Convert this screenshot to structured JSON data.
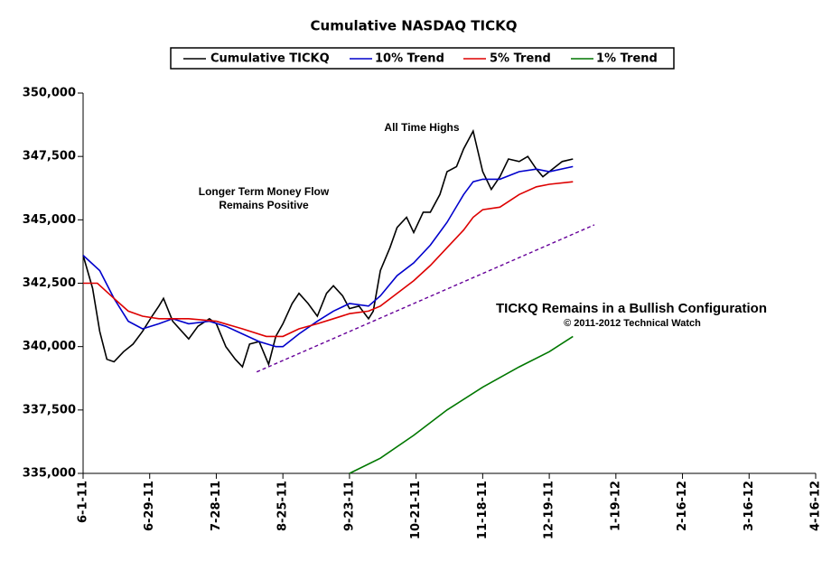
{
  "chart_data": {
    "type": "line",
    "title": "Cumulative NASDAQ TICKQ",
    "legend": "top",
    "xlim": [
      "6-1-11",
      "4-16-12"
    ],
    "xticks": [
      "6-1-11",
      "6-29-11",
      "7-28-11",
      "8-25-11",
      "9-23-11",
      "10-21-11",
      "11-18-11",
      "12-19-11",
      "1-19-12",
      "2-16-12",
      "3-16-12",
      "4-16-12"
    ],
    "ylim": [
      335000,
      350000
    ],
    "yticks": [
      {
        "value": 335000,
        "label": "335,000"
      },
      {
        "value": 337500,
        "label": "337,500"
      },
      {
        "value": 340000,
        "label": "340,000"
      },
      {
        "value": 342500,
        "label": "342,500"
      },
      {
        "value": 345000,
        "label": "345,000"
      },
      {
        "value": 347500,
        "label": "347,500"
      },
      {
        "value": 350000,
        "label": "350,000"
      }
    ],
    "series": [
      {
        "name": "Cumulative TICKQ",
        "color": "#000000",
        "x": [
          "6-1-11",
          "6-5-11",
          "6-8-11",
          "6-11-11",
          "6-14-11",
          "6-18-11",
          "6-22-11",
          "6-26-11",
          "6-30-11",
          "7-3-11",
          "7-5-11",
          "7-9-11",
          "7-13-11",
          "7-16-11",
          "7-20-11",
          "7-25-11",
          "7-28-11",
          "8-1-11",
          "8-5-11",
          "8-8-11",
          "8-11-11",
          "8-15-11",
          "8-19-11",
          "8-22-11",
          "8-25-11",
          "8-29-11",
          "9-1-11",
          "9-5-11",
          "9-9-11",
          "9-13-11",
          "9-16-11",
          "9-20-11",
          "9-23-11",
          "9-27-11",
          "10-1-11",
          "10-3-11",
          "10-6-11",
          "10-10-11",
          "10-13-11",
          "10-17-11",
          "10-20-11",
          "10-24-11",
          "10-27-11",
          "10-31-11",
          "11-3-11",
          "11-7-11",
          "11-10-11",
          "11-14-11",
          "11-18-11",
          "11-22-11",
          "11-26-11",
          "11-30-11",
          "12-5-11",
          "12-9-11",
          "12-13-11",
          "12-16-11",
          "12-19-11",
          "12-22-11",
          "12-25-11",
          "12-30-11"
        ],
        "values": [
          343600,
          342300,
          340600,
          339500,
          339400,
          339800,
          340100,
          340600,
          341200,
          341600,
          341900,
          341000,
          340600,
          340300,
          340800,
          341100,
          340900,
          340000,
          339500,
          339200,
          340100,
          340200,
          339300,
          340400,
          340900,
          341700,
          342100,
          341700,
          341200,
          342100,
          342400,
          342000,
          341500,
          341600,
          341100,
          341400,
          343000,
          343900,
          344700,
          345100,
          344500,
          345300,
          345300,
          346000,
          346900,
          347100,
          347800,
          348500,
          346900,
          346200,
          346700,
          347400,
          347300,
          347500,
          347000,
          346700,
          346900,
          347100,
          347300,
          347400
        ]
      },
      {
        "name": "10% Trend",
        "color": "#0000cc",
        "x": [
          "6-1-11",
          "6-8-11",
          "6-14-11",
          "6-20-11",
          "6-26-11",
          "7-3-11",
          "7-9-11",
          "7-16-11",
          "7-25-11",
          "8-1-11",
          "8-8-11",
          "8-15-11",
          "8-22-11",
          "8-25-11",
          "9-1-11",
          "9-9-11",
          "9-16-11",
          "9-23-11",
          "10-1-11",
          "10-6-11",
          "10-13-11",
          "10-20-11",
          "10-27-11",
          "11-3-11",
          "11-10-11",
          "11-14-11",
          "11-18-11",
          "11-26-11",
          "12-5-11",
          "12-13-11",
          "12-19-11",
          "12-30-11"
        ],
        "values": [
          343600,
          343000,
          341900,
          341000,
          340700,
          340900,
          341100,
          340900,
          341000,
          340800,
          340500,
          340200,
          340000,
          340000,
          340500,
          341000,
          341400,
          341700,
          341600,
          342000,
          342800,
          343300,
          344000,
          344900,
          346000,
          346500,
          346600,
          346600,
          346900,
          347000,
          346900,
          347100
        ]
      },
      {
        "name": "5% Trend",
        "color": "#dd0000",
        "x": [
          "6-1-11",
          "6-7-11",
          "6-14-11",
          "6-20-11",
          "6-26-11",
          "7-3-11",
          "7-16-11",
          "7-28-11",
          "8-8-11",
          "8-18-11",
          "8-25-11",
          "9-1-11",
          "9-9-11",
          "9-16-11",
          "9-23-11",
          "10-1-11",
          "10-6-11",
          "10-13-11",
          "10-20-11",
          "10-27-11",
          "11-3-11",
          "11-10-11",
          "11-14-11",
          "11-18-11",
          "11-26-11",
          "12-5-11",
          "12-13-11",
          "12-19-11",
          "12-30-11"
        ],
        "values": [
          342500,
          342500,
          341900,
          341400,
          341200,
          341100,
          341100,
          341000,
          340700,
          340400,
          340400,
          340700,
          340900,
          341100,
          341300,
          341400,
          341600,
          342100,
          342600,
          343200,
          343900,
          344600,
          345100,
          345400,
          345500,
          346000,
          346300,
          346400,
          346500
        ]
      },
      {
        "name": "1% Trend",
        "color": "#007700",
        "x": [
          "9-23-11",
          "10-6-11",
          "10-20-11",
          "11-3-11",
          "11-18-11",
          "12-5-11",
          "12-19-11",
          "12-30-11"
        ],
        "values": [
          335000,
          335600,
          336500,
          337500,
          338400,
          339200,
          339800,
          340400
        ]
      }
    ],
    "trendline": {
      "color": "#660099",
      "x": [
        "8-14-11",
        "1-9-12"
      ],
      "values": [
        339000,
        344800
      ]
    },
    "annotations": [
      {
        "text": "All Time Highs",
        "color": "#800080"
      },
      {
        "text": "Longer Term Money Flow",
        "color": "#228b22"
      },
      {
        "text": "Remains Positive",
        "color": "#228b22"
      },
      {
        "text": "TICKQ Remains in a Bullish Configuration",
        "color": "#0000ee"
      },
      {
        "text": "© 2011-2012 Technical Watch",
        "color": "#999999"
      }
    ]
  }
}
